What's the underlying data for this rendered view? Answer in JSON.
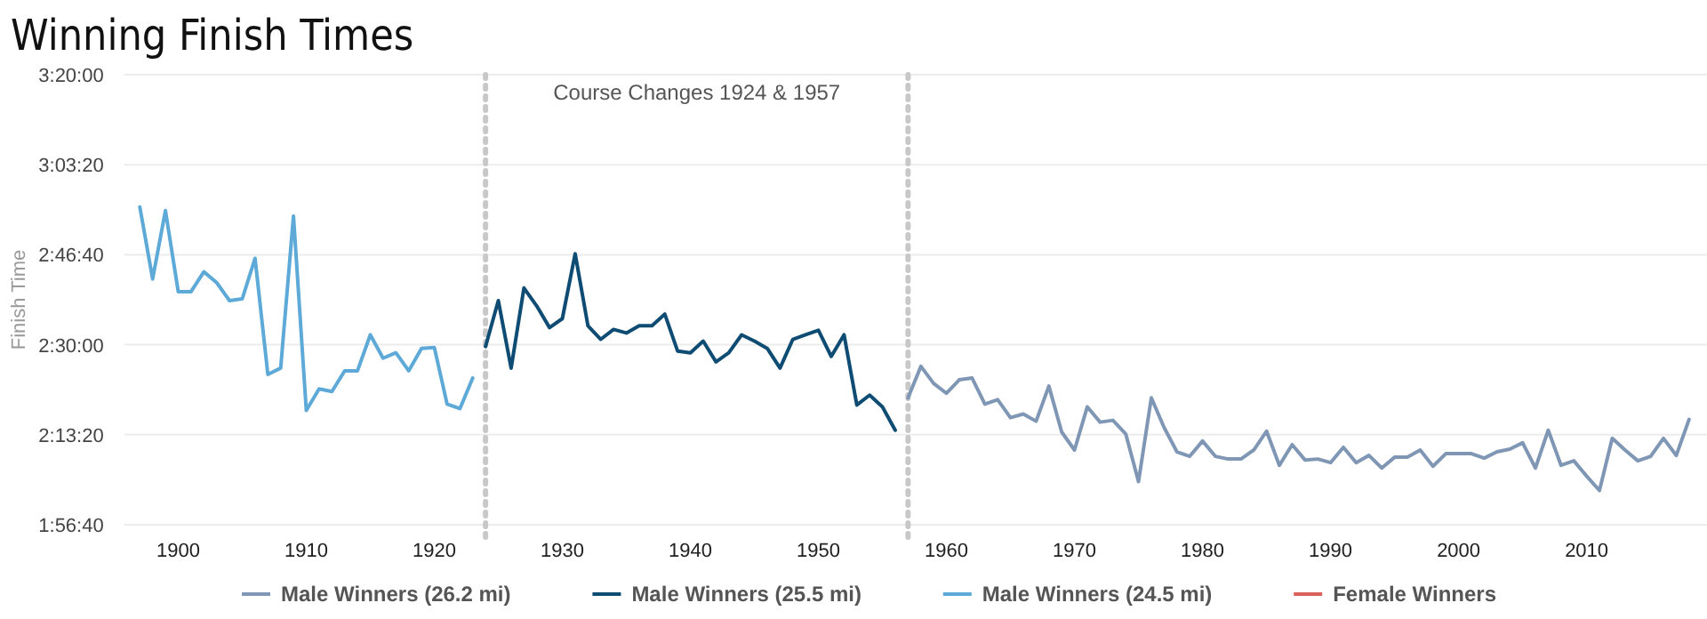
{
  "chart_data": {
    "type": "line",
    "title": "Winning Finish Times",
    "ylabel": "Finish Time",
    "annotations": [
      "Course Changes 1924 & 1957"
    ],
    "xlim": [
      1895.8,
      2019.4
    ],
    "xticks": [
      1900,
      1910,
      1920,
      1930,
      1940,
      1950,
      1960,
      1970,
      1980,
      1990,
      2000,
      2010
    ],
    "ylim": [
      7000,
      12000
    ],
    "yticks": [
      {
        "value": 7000,
        "label": "1:56:40"
      },
      {
        "value": 8000,
        "label": "2:13:20"
      },
      {
        "value": 9000,
        "label": "2:30:00"
      },
      {
        "value": 10000,
        "label": "2:46:40"
      },
      {
        "value": 11000,
        "label": "3:03:20"
      },
      {
        "value": 12000,
        "label": "3:20:00"
      }
    ],
    "grid": "y",
    "legend": "bottom",
    "marker": "none",
    "line_style": "solid",
    "ref_lines": [
      {
        "axis": "x",
        "value": 1924,
        "color": "#c8c8c8",
        "line_style": "dotted"
      },
      {
        "axis": "x",
        "value": 1957,
        "color": "#c8c8c8",
        "line_style": "dotted"
      }
    ],
    "series": [
      {
        "name": "Male Winners (26.2 mi)",
        "color": "#7f97b5",
        "x": [
          1957,
          1958,
          1959,
          1960,
          1961,
          1962,
          1963,
          1964,
          1965,
          1966,
          1967,
          1968,
          1969,
          1970,
          1971,
          1972,
          1973,
          1974,
          1975,
          1976,
          1977,
          1978,
          1979,
          1980,
          1981,
          1982,
          1983,
          1984,
          1985,
          1986,
          1987,
          1988,
          1989,
          1990,
          1991,
          1992,
          1993,
          1994,
          1995,
          1996,
          1997,
          1998,
          1999,
          2000,
          2001,
          2002,
          2003,
          2004,
          2005,
          2006,
          2007,
          2008,
          2009,
          2010,
          2011,
          2012,
          2013,
          2014,
          2015,
          2016,
          2017,
          2018
        ],
        "values": [
          8410,
          8760,
          8570,
          8460,
          8610,
          8630,
          8340,
          8390,
          8190,
          8230,
          8150,
          8540,
          8030,
          7830,
          8310,
          8140,
          8160,
          8010,
          7480,
          8410,
          8080,
          7810,
          7760,
          7930,
          7760,
          7730,
          7730,
          7830,
          8040,
          7660,
          7890,
          7720,
          7730,
          7690,
          7860,
          7690,
          7770,
          7630,
          7750,
          7750,
          7830,
          7650,
          7790,
          7790,
          7790,
          7740,
          7810,
          7840,
          7910,
          7630,
          8050,
          7660,
          7710,
          7540,
          7380,
          7960,
          7830,
          7710,
          7760,
          7960,
          7770,
          8170
        ]
      },
      {
        "name": "Male Winners (25.5 mi)",
        "color": "#0e4c74",
        "x": [
          1924,
          1925,
          1926,
          1927,
          1928,
          1929,
          1930,
          1931,
          1932,
          1933,
          1934,
          1935,
          1936,
          1937,
          1938,
          1939,
          1940,
          1941,
          1942,
          1943,
          1944,
          1945,
          1946,
          1947,
          1948,
          1949,
          1950,
          1951,
          1952,
          1953,
          1954,
          1955,
          1956
        ],
        "values": [
          8980,
          9490,
          8740,
          9630,
          9430,
          9190,
          9290,
          10010,
          9210,
          9060,
          9170,
          9130,
          9210,
          9210,
          9340,
          8930,
          8910,
          9040,
          8810,
          8910,
          9110,
          9040,
          8960,
          8740,
          9060,
          9110,
          9160,
          8870,
          9110,
          8330,
          8440,
          8310,
          8050
        ]
      },
      {
        "name": "Male Winners (24.5 mi)",
        "color": "#5da9d7",
        "x": [
          1897,
          1898,
          1899,
          1900,
          1901,
          1902,
          1903,
          1904,
          1905,
          1906,
          1907,
          1908,
          1909,
          1910,
          1911,
          1912,
          1913,
          1914,
          1915,
          1916,
          1917,
          1918,
          1919,
          1920,
          1921,
          1922,
          1923
        ],
        "values": [
          10530,
          9730,
          10490,
          9590,
          9590,
          9810,
          9690,
          9490,
          9510,
          9960,
          8670,
          8740,
          10430,
          8270,
          8510,
          8480,
          8710,
          8710,
          9110,
          8850,
          8910,
          8710,
          8960,
          8970,
          8340,
          8290,
          8630
        ]
      },
      {
        "name": "Female Winners",
        "color": "#d9625a"
      }
    ]
  }
}
